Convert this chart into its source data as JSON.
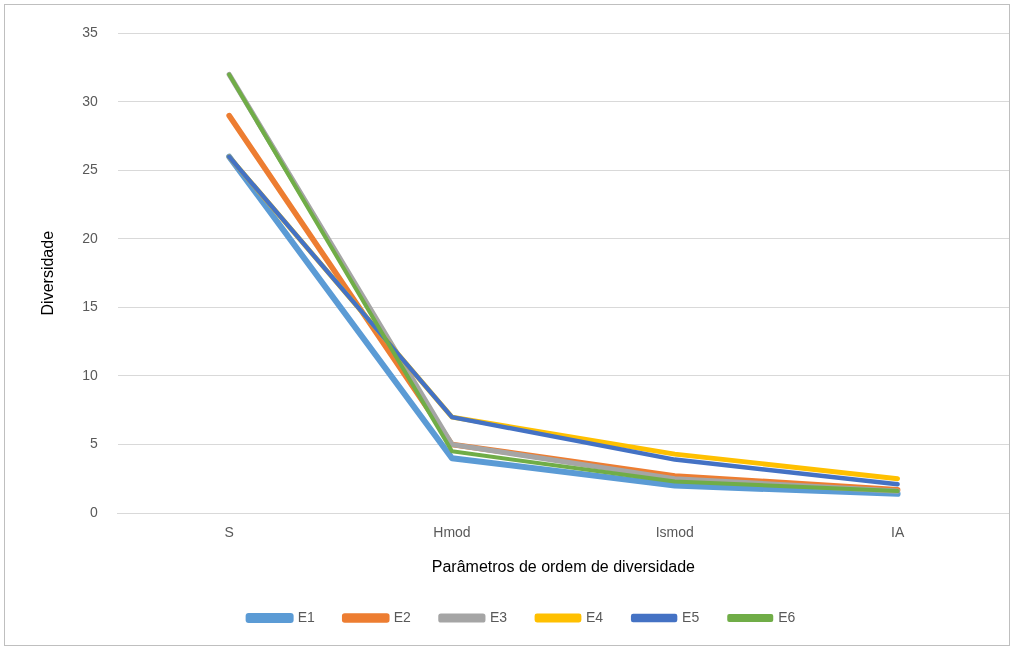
{
  "chart_data": {
    "type": "line",
    "xlabel": "Parâmetros de ordem de diversidade",
    "ylabel": "Diversidade",
    "categories": [
      "S",
      "Hmod",
      "Ismod",
      "IA"
    ],
    "series": [
      {
        "name": "E1",
        "color": "#5b9bd5",
        "values": [
          26,
          4,
          2.0,
          1.4
        ]
      },
      {
        "name": "E2",
        "color": "#ed7d31",
        "values": [
          29,
          5,
          2.7,
          1.7
        ]
      },
      {
        "name": "E3",
        "color": "#a5a5a5",
        "values": [
          32,
          5,
          2.5,
          1.6
        ]
      },
      {
        "name": "E4",
        "color": "#ffc000",
        "values": [
          26,
          7,
          4.3,
          2.5
        ]
      },
      {
        "name": "E5",
        "color": "#4472c4",
        "values": [
          26,
          7,
          3.9,
          2.1
        ]
      },
      {
        "name": "E6",
        "color": "#70ad47",
        "values": [
          32,
          4.5,
          2.3,
          1.6
        ]
      }
    ],
    "ylim": [
      0,
      35
    ],
    "yticks": [
      0,
      5,
      10,
      15,
      20,
      25,
      30,
      35
    ],
    "grid": "y",
    "legend": "bottom",
    "marker": "none",
    "line_style": "solid"
  }
}
